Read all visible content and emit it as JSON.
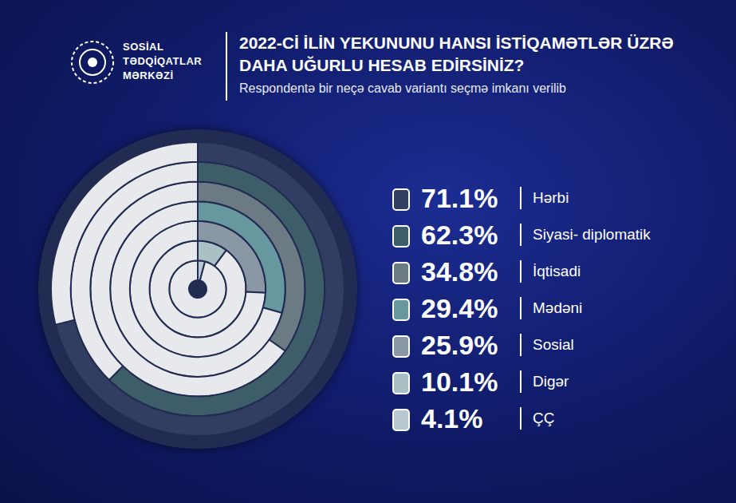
{
  "chart_data": {
    "type": "radial_bar",
    "title": "2022-Cİ İLİN YEKUNUNU HANSI İSTİQAMƏTLƏR ÜZRƏ DAHA UĞURLU HESAB EDİRSİNİZ?",
    "subtitle": "Respondentə bir neçə cavab variantı seçmə imkanı verilib",
    "annotations": [
      "SOSİAL",
      "TƏDQİQATLAR",
      "MƏRKƏZİ"
    ],
    "categories": [
      "Hərbi",
      "Siyasi- diplomatik",
      "İqtisadi",
      "Mədəni",
      "Sosial",
      "Digər",
      "ÇÇ"
    ],
    "values": [
      71.1,
      62.3,
      34.8,
      29.4,
      25.9,
      10.1,
      4.1
    ],
    "value_labels": [
      "71.1%",
      "62.3%",
      "34.8%",
      "29.4%",
      "25.9%",
      "10.1%",
      "4.1%"
    ],
    "colors": [
      "#323d62",
      "#3d5d69",
      "#6b7a83",
      "#67989f",
      "#8a98a5",
      "#a9c0c4",
      "#b7c8d2"
    ],
    "ylim": [
      0,
      100
    ],
    "legend": "right",
    "tick_labels": false,
    "grid": false
  }
}
